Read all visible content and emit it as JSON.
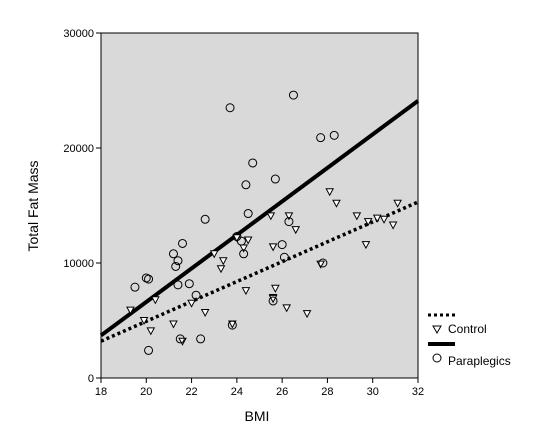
{
  "chart_data": {
    "type": "scatter",
    "xlabel": "BMI",
    "ylabel": "Total Fat Mass",
    "xlim": [
      18,
      32
    ],
    "ylim": [
      0,
      30000
    ],
    "x_ticks": [
      "18",
      "20",
      "22",
      "24",
      "26",
      "28",
      "30",
      "32"
    ],
    "y_ticks": [
      "0",
      "10000",
      "20000",
      "30000"
    ],
    "x_tick_values": [
      18,
      20,
      22,
      24,
      26,
      28,
      30,
      32
    ],
    "y_tick_values": [
      0,
      10000,
      20000,
      30000
    ],
    "plot_background": "#d9d9d9",
    "grid": false,
    "legend_position": "right",
    "series": [
      {
        "name": "Control",
        "marker": "triangle-down",
        "fit_line": "dotted",
        "fit": [
          [
            18,
            3200
          ],
          [
            32,
            15300
          ]
        ],
        "points": [
          [
            19.3,
            5900
          ],
          [
            19.9,
            5000
          ],
          [
            20.2,
            4100
          ],
          [
            20.4,
            6800
          ],
          [
            21.2,
            4700
          ],
          [
            21.6,
            3200
          ],
          [
            22.0,
            6500
          ],
          [
            22.6,
            5700
          ],
          [
            23.0,
            10800
          ],
          [
            23.3,
            9500
          ],
          [
            23.4,
            10200
          ],
          [
            23.8,
            4700
          ],
          [
            24.0,
            12200
          ],
          [
            24.3,
            11300
          ],
          [
            24.4,
            7600
          ],
          [
            24.5,
            12000
          ],
          [
            25.5,
            14100
          ],
          [
            25.6,
            11400
          ],
          [
            25.6,
            7000
          ],
          [
            25.6,
            6900
          ],
          [
            25.7,
            7800
          ],
          [
            26.2,
            6100
          ],
          [
            26.3,
            14100
          ],
          [
            26.6,
            12900
          ],
          [
            27.1,
            5600
          ],
          [
            27.7,
            9900
          ],
          [
            28.1,
            16200
          ],
          [
            28.4,
            15200
          ],
          [
            29.3,
            14100
          ],
          [
            29.7,
            11600
          ],
          [
            29.8,
            13600
          ],
          [
            30.2,
            13900
          ],
          [
            30.5,
            13800
          ],
          [
            30.9,
            13300
          ],
          [
            31.1,
            15200
          ]
        ]
      },
      {
        "name": "Paraplegics",
        "marker": "circle",
        "fit_line": "solid",
        "fit": [
          [
            18,
            3700
          ],
          [
            32,
            24100
          ]
        ],
        "points": [
          [
            19.5,
            7900
          ],
          [
            20.0,
            8700
          ],
          [
            20.1,
            8600
          ],
          [
            20.1,
            2400
          ],
          [
            21.2,
            10800
          ],
          [
            21.3,
            9700
          ],
          [
            21.4,
            8100
          ],
          [
            21.4,
            10200
          ],
          [
            21.5,
            3400
          ],
          [
            21.6,
            11700
          ],
          [
            21.9,
            8200
          ],
          [
            22.2,
            7200
          ],
          [
            22.4,
            3400
          ],
          [
            22.6,
            13800
          ],
          [
            23.7,
            23500
          ],
          [
            23.8,
            4600
          ],
          [
            24.0,
            12300
          ],
          [
            24.2,
            11900
          ],
          [
            24.3,
            10800
          ],
          [
            24.4,
            16800
          ],
          [
            24.5,
            14300
          ],
          [
            24.7,
            18700
          ],
          [
            25.6,
            6700
          ],
          [
            25.7,
            17300
          ],
          [
            26.0,
            11600
          ],
          [
            26.1,
            10500
          ],
          [
            26.3,
            13600
          ],
          [
            26.5,
            24600
          ],
          [
            27.7,
            20900
          ],
          [
            27.8,
            10000
          ],
          [
            28.3,
            21100
          ]
        ]
      }
    ]
  }
}
